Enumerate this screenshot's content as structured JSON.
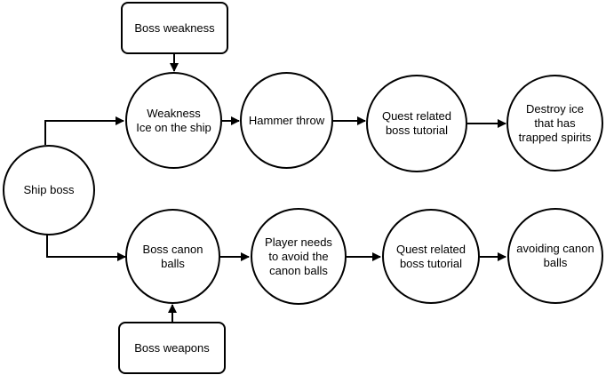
{
  "nodes": {
    "ship_boss": "Ship boss",
    "boss_weakness": "Boss weakness",
    "weakness_ice": "Weakness\nIce on the ship",
    "hammer_throw": "Hammer throw",
    "quest_top": "Quest related\nboss tutorial",
    "destroy_ice": "Destroy  ice\nthat has\ntrapped spirits",
    "boss_canon_balls": "Boss canon\nballs",
    "player_avoid": "Player needs\nto avoid the\ncanon balls",
    "quest_bottom": "Quest related\nboss tutorial",
    "avoiding_canon": "avoiding canon\nballs",
    "boss_weapons": "Boss weapons"
  },
  "edges": [
    {
      "from": "ship_boss",
      "to": "weakness_ice"
    },
    {
      "from": "ship_boss",
      "to": "boss_canon_balls"
    },
    {
      "from": "boss_weakness",
      "to": "weakness_ice"
    },
    {
      "from": "boss_weapons",
      "to": "boss_canon_balls"
    },
    {
      "from": "weakness_ice",
      "to": "hammer_throw"
    },
    {
      "from": "hammer_throw",
      "to": "quest_top"
    },
    {
      "from": "quest_top",
      "to": "destroy_ice"
    },
    {
      "from": "boss_canon_balls",
      "to": "player_avoid"
    },
    {
      "from": "player_avoid",
      "to": "quest_bottom"
    },
    {
      "from": "quest_bottom",
      "to": "avoiding_canon"
    }
  ]
}
